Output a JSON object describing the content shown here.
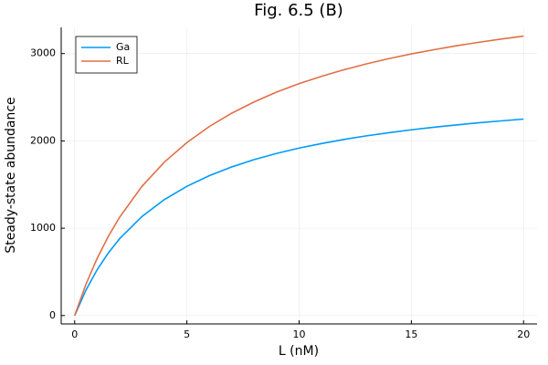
{
  "chart_data": {
    "type": "line",
    "title": "Fig. 6.5 (B)",
    "x_label": "L (nM)",
    "y_label": "Steady-state abundance",
    "x": [
      0,
      0.5,
      1,
      1.5,
      2,
      3,
      4,
      5,
      6,
      7,
      8,
      9,
      10,
      11,
      12,
      13,
      14,
      15,
      16,
      17,
      18,
      19,
      20
    ],
    "series": [
      {
        "name": "Ga",
        "color": "#009af9",
        "values": [
          0,
          290,
          524,
          717,
          879,
          1135,
          1329,
          1480,
          1602,
          1702,
          1786,
          1857,
          1918,
          1970,
          2017,
          2058,
          2094,
          2127,
          2156,
          2183,
          2207,
          2229,
          2250
        ]
      },
      {
        "name": "RL",
        "color": "#e26f46",
        "values": [
          0,
          356,
          654,
          907,
          1125,
          1480,
          1758,
          1981,
          2165,
          2318,
          2447,
          2559,
          2656,
          2740,
          2815,
          2882,
          2942,
          2996,
          3044,
          3089,
          3129,
          3166,
          3200
        ]
      }
    ],
    "xlim": [
      -0.6,
      20.6
    ],
    "ylim": [
      -96,
      3300
    ],
    "xticks": [
      0,
      5,
      10,
      15,
      20
    ],
    "yticks": [
      0,
      1000,
      2000,
      3000
    ],
    "grid": true,
    "legend": "top-left"
  }
}
